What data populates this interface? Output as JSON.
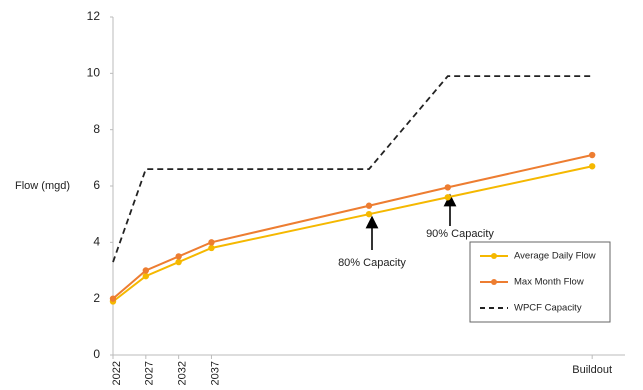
{
  "chart_data": {
    "type": "line",
    "y_label": "Flow (mgd)",
    "x": [
      2022,
      2027,
      2032,
      2037,
      2061,
      2073,
      2095
    ],
    "xlim": [
      2022,
      2100
    ],
    "xticks": [
      {
        "value": 2022,
        "label": "2022"
      },
      {
        "value": 2027,
        "label": "2027"
      },
      {
        "value": 2032,
        "label": "2032"
      },
      {
        "value": 2037,
        "label": "2037"
      },
      {
        "value": 2095,
        "label": "Buildout"
      }
    ],
    "ylim": [
      0,
      12
    ],
    "yticks": [
      0,
      2,
      4,
      6,
      8,
      10,
      12
    ],
    "grid": false,
    "legend": "lower right",
    "series": [
      {
        "name": "Average Daily Flow",
        "color": "#f5b800",
        "marker": true,
        "dashed": false,
        "values": [
          1.9,
          2.8,
          3.3,
          3.8,
          5.0,
          5.6,
          6.7
        ]
      },
      {
        "name": "Max Month Flow",
        "color": "#ed7d31",
        "marker": true,
        "dashed": false,
        "values": [
          2.0,
          3.0,
          3.5,
          4.0,
          5.3,
          5.95,
          7.1
        ]
      },
      {
        "name": "WPCF Capacity",
        "color": "#222222",
        "marker": false,
        "dashed": true,
        "x": [
          2022,
          2027,
          2061,
          2073,
          2095
        ],
        "values": [
          3.3,
          6.6,
          6.6,
          9.9,
          9.9
        ]
      }
    ],
    "annotations": [
      "80% Capacity",
      "90% Capacity"
    ]
  }
}
